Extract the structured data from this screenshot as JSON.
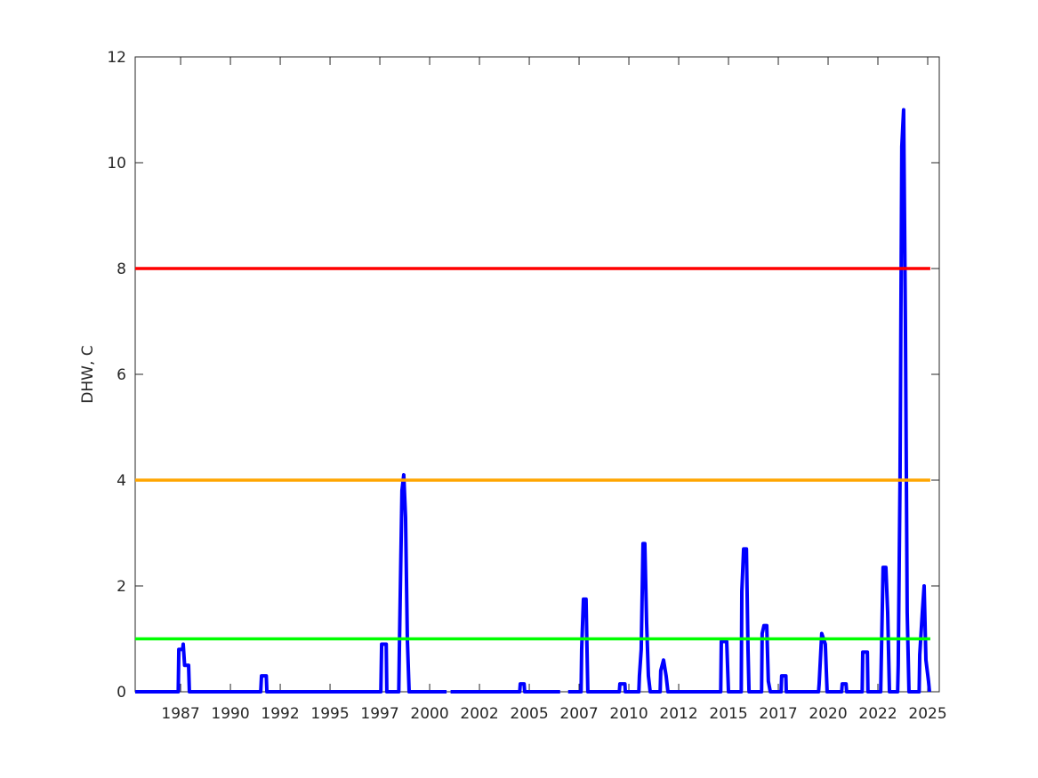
{
  "chart_data": {
    "type": "line",
    "ylabel": "DHW, C",
    "xlim": [
      1985.22,
      2025.58
    ],
    "xticks": [
      {
        "value": 1987.5,
        "label": "1987"
      },
      1990,
      {
        "value": 1992.5,
        "label": "1992"
      },
      1995,
      {
        "value": 1997.5,
        "label": "1997"
      },
      2000,
      {
        "value": 2002.5,
        "label": "2002"
      },
      2005,
      {
        "value": 2007.5,
        "label": "2007"
      },
      2010,
      {
        "value": 2012.5,
        "label": "2012"
      },
      2015,
      {
        "value": 2017.5,
        "label": "2017"
      },
      2020,
      {
        "value": 2022.5,
        "label": "2022"
      },
      2025
    ],
    "ylim": [
      0,
      12
    ],
    "yticks": [
      0,
      2,
      4,
      6,
      8,
      10,
      12
    ],
    "grid": false,
    "series": [
      {
        "color": "#0000ff",
        "x": [
          1985.22,
          1987.38,
          1987.41,
          1987.6,
          1987.63,
          1987.7,
          1987.76,
          1987.9,
          1987.94,
          1991.52,
          1991.56,
          1991.8,
          1991.83,
          1997.55,
          1997.59,
          1997.82,
          1997.85,
          1998.45,
          1998.48,
          1998.61,
          1998.7,
          1998.79,
          1998.88,
          1998.97,
          2000.85,
          2000.9,
          2001.05,
          2004.52,
          2004.55,
          2004.74,
          2004.77,
          2006.55,
          2006.6,
          2006.95,
          2007.6,
          2007.63,
          2007.72,
          2007.85,
          2007.94,
          2009.52,
          2009.55,
          2009.8,
          2009.82,
          2010.5,
          2010.53,
          2010.62,
          2010.71,
          2010.8,
          2010.89,
          2010.98,
          2011.07,
          2011.57,
          2011.6,
          2011.74,
          2011.87,
          2011.96,
          2014.61,
          2014.64,
          2014.91,
          2015.0,
          2015.64,
          2015.67,
          2015.76,
          2015.9,
          2015.98,
          2016.03,
          2016.66,
          2016.69,
          2016.78,
          2016.92,
          2017.0,
          2017.1,
          2017.64,
          2017.67,
          2017.88,
          2017.9,
          2019.52,
          2019.55,
          2019.68,
          2019.86,
          2019.95,
          2020.68,
          2020.71,
          2020.9,
          2020.93,
          2021.71,
          2021.74,
          2021.97,
          2022.0,
          2022.64,
          2022.67,
          2022.76,
          2022.9,
          2022.99,
          2023.08,
          2023.49,
          2023.52,
          2023.61,
          2023.7,
          2023.79,
          2023.88,
          2023.97,
          2024.06,
          2024.57,
          2024.6,
          2024.73,
          2024.82,
          2024.91,
          2025.04,
          2025.09
        ],
        "values": [
          0,
          0,
          0.8,
          0.8,
          0.9,
          0.5,
          0.5,
          0.5,
          0,
          0,
          0.3,
          0.3,
          0,
          0,
          0.9,
          0.9,
          0,
          0,
          0.8,
          3.8,
          4.1,
          3.3,
          1.0,
          0,
          0,
          null,
          0,
          0,
          0.15,
          0.15,
          0,
          0,
          null,
          0,
          0,
          0.8,
          1.75,
          1.75,
          0,
          0,
          0.15,
          0.15,
          0,
          0,
          0.3,
          0.8,
          2.8,
          2.8,
          1.3,
          0.3,
          0,
          0,
          0.4,
          0.6,
          0.3,
          0,
          0,
          0.95,
          0.95,
          0,
          0,
          1.9,
          2.7,
          2.7,
          0.8,
          0,
          0,
          1.1,
          1.25,
          1.25,
          0.2,
          0,
          0,
          0.3,
          0.3,
          0,
          0,
          0.15,
          1.1,
          0.9,
          0,
          0,
          0.15,
          0.15,
          0,
          0,
          0.75,
          0.75,
          0,
          0,
          0.6,
          2.35,
          2.35,
          1.5,
          0,
          0,
          0.5,
          4,
          10.3,
          11.0,
          7,
          1.5,
          0,
          0,
          0.7,
          1.5,
          2.0,
          0.6,
          0.2,
          0
        ]
      },
      {
        "color": "#00ff00",
        "x": [
          1985.22,
          2025.13
        ],
        "values": [
          1,
          1
        ]
      },
      {
        "color": "#ffa500",
        "x": [
          1985.22,
          2025.13
        ],
        "values": [
          4,
          4
        ]
      },
      {
        "color": "#ff0000",
        "x": [
          1985.22,
          2025.13
        ],
        "values": [
          8,
          8
        ]
      }
    ]
  }
}
